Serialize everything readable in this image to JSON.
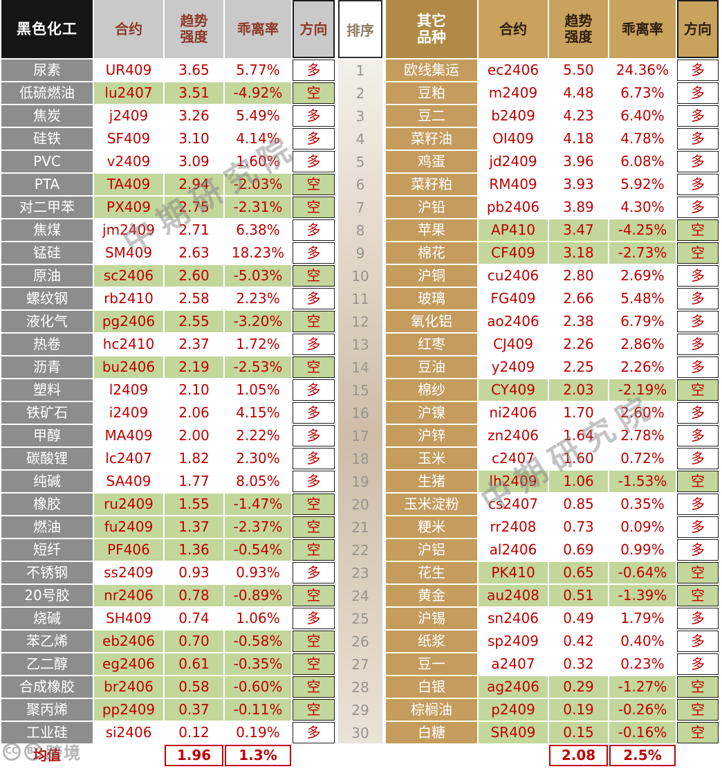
{
  "left_table": {
    "header": {
      "category": "黑色化工",
      "contract": "合约",
      "strength": "趋势\n强度",
      "deviation": "乖离率",
      "direction": "方向"
    },
    "rows": [
      {
        "name": "尿素",
        "contract": "UR409",
        "strength": "3.65",
        "deviation": "5.77%",
        "direction": "多"
      },
      {
        "name": "低硫燃油",
        "contract": "lu2407",
        "strength": "3.51",
        "deviation": "-4.92%",
        "direction": "空"
      },
      {
        "name": "焦炭",
        "contract": "j2409",
        "strength": "3.26",
        "deviation": "5.49%",
        "direction": "多"
      },
      {
        "name": "硅铁",
        "contract": "SF409",
        "strength": "3.10",
        "deviation": "4.14%",
        "direction": "多"
      },
      {
        "name": "PVC",
        "contract": "v2409",
        "strength": "3.09",
        "deviation": "1.60%",
        "direction": "多"
      },
      {
        "name": "PTA",
        "contract": "TA409",
        "strength": "2.94",
        "deviation": "-2.03%",
        "direction": "空"
      },
      {
        "name": "对二甲苯",
        "contract": "PX409",
        "strength": "2.75",
        "deviation": "-2.31%",
        "direction": "空"
      },
      {
        "name": "焦煤",
        "contract": "jm2409",
        "strength": "2.71",
        "deviation": "6.38%",
        "direction": "多"
      },
      {
        "name": "锰硅",
        "contract": "SM409",
        "strength": "2.63",
        "deviation": "18.23%",
        "direction": "多"
      },
      {
        "name": "原油",
        "contract": "sc2406",
        "strength": "2.60",
        "deviation": "-5.03%",
        "direction": "空"
      },
      {
        "name": "螺纹钢",
        "contract": "rb2410",
        "strength": "2.58",
        "deviation": "2.23%",
        "direction": "多"
      },
      {
        "name": "液化气",
        "contract": "pg2406",
        "strength": "2.55",
        "deviation": "-3.20%",
        "direction": "空"
      },
      {
        "name": "热卷",
        "contract": "hc2410",
        "strength": "2.37",
        "deviation": "1.72%",
        "direction": "多"
      },
      {
        "name": "沥青",
        "contract": "bu2406",
        "strength": "2.19",
        "deviation": "-2.53%",
        "direction": "空"
      },
      {
        "name": "塑料",
        "contract": "l2409",
        "strength": "2.10",
        "deviation": "1.05%",
        "direction": "多"
      },
      {
        "name": "铁矿石",
        "contract": "i2409",
        "strength": "2.06",
        "deviation": "4.15%",
        "direction": "多"
      },
      {
        "name": "甲醇",
        "contract": "MA409",
        "strength": "2.00",
        "deviation": "2.22%",
        "direction": "多"
      },
      {
        "name": "碳酸锂",
        "contract": "lc2407",
        "strength": "1.82",
        "deviation": "2.30%",
        "direction": "多"
      },
      {
        "name": "纯碱",
        "contract": "SA409",
        "strength": "1.77",
        "deviation": "8.05%",
        "direction": "多"
      },
      {
        "name": "橡胶",
        "contract": "ru2409",
        "strength": "1.55",
        "deviation": "-1.47%",
        "direction": "空"
      },
      {
        "name": "燃油",
        "contract": "fu2409",
        "strength": "1.37",
        "deviation": "-2.37%",
        "direction": "空"
      },
      {
        "name": "短纤",
        "contract": "PF406",
        "strength": "1.36",
        "deviation": "-0.54%",
        "direction": "空"
      },
      {
        "name": "不锈钢",
        "contract": "ss2409",
        "strength": "0.93",
        "deviation": "0.93%",
        "direction": "多"
      },
      {
        "name": "20号胶",
        "contract": "nr2406",
        "strength": "0.78",
        "deviation": "-0.89%",
        "direction": "空"
      },
      {
        "name": "烧碱",
        "contract": "SH409",
        "strength": "0.74",
        "deviation": "1.06%",
        "direction": "多"
      },
      {
        "name": "苯乙烯",
        "contract": "eb2406",
        "strength": "0.70",
        "deviation": "-0.58%",
        "direction": "空"
      },
      {
        "name": "乙二醇",
        "contract": "eg2406",
        "strength": "0.61",
        "deviation": "-0.35%",
        "direction": "空"
      },
      {
        "name": "合成橡胶",
        "contract": "br2406",
        "strength": "0.58",
        "deviation": "-0.60%",
        "direction": "空"
      },
      {
        "name": "聚丙烯",
        "contract": "pp2409",
        "strength": "0.37",
        "deviation": "-0.11%",
        "direction": "空"
      },
      {
        "name": "工业硅",
        "contract": "si2406",
        "strength": "0.12",
        "deviation": "0.19%",
        "direction": "多"
      }
    ],
    "footer": {
      "label": "均值",
      "strength": "1.96",
      "deviation": "1.3%"
    }
  },
  "rank_column": {
    "header": "排序",
    "ranks": [
      1,
      2,
      3,
      4,
      5,
      6,
      7,
      8,
      9,
      10,
      11,
      12,
      13,
      14,
      15,
      16,
      17,
      18,
      19,
      20,
      21,
      22,
      23,
      24,
      25,
      26,
      27,
      28,
      29,
      30
    ]
  },
  "right_table": {
    "header": {
      "category": "其它\n品种",
      "contract": "合约",
      "strength": "趋势\n强度",
      "deviation": "乖离率",
      "direction": "方向"
    },
    "rows": [
      {
        "name": "欧线集运",
        "contract": "ec2406",
        "strength": "5.50",
        "deviation": "24.36%",
        "direction": "多"
      },
      {
        "name": "豆粕",
        "contract": "m2409",
        "strength": "4.48",
        "deviation": "6.73%",
        "direction": "多"
      },
      {
        "name": "豆二",
        "contract": "b2409",
        "strength": "4.23",
        "deviation": "6.40%",
        "direction": "多"
      },
      {
        "name": "菜籽油",
        "contract": "OI409",
        "strength": "4.18",
        "deviation": "4.78%",
        "direction": "多"
      },
      {
        "name": "鸡蛋",
        "contract": "jd2409",
        "strength": "3.96",
        "deviation": "6.08%",
        "direction": "多"
      },
      {
        "name": "菜籽粕",
        "contract": "RM409",
        "strength": "3.93",
        "deviation": "5.92%",
        "direction": "多"
      },
      {
        "name": "沪铅",
        "contract": "pb2406",
        "strength": "3.89",
        "deviation": "4.30%",
        "direction": "多"
      },
      {
        "name": "苹果",
        "contract": "AP410",
        "strength": "3.47",
        "deviation": "-4.25%",
        "direction": "空"
      },
      {
        "name": "棉花",
        "contract": "CF409",
        "strength": "3.18",
        "deviation": "-2.73%",
        "direction": "空"
      },
      {
        "name": "沪铜",
        "contract": "cu2406",
        "strength": "2.80",
        "deviation": "2.69%",
        "direction": "多"
      },
      {
        "name": "玻璃",
        "contract": "FG409",
        "strength": "2.66",
        "deviation": "5.48%",
        "direction": "多"
      },
      {
        "name": "氧化铝",
        "contract": "ao2406",
        "strength": "2.38",
        "deviation": "6.79%",
        "direction": "多"
      },
      {
        "name": "红枣",
        "contract": "CJ409",
        "strength": "2.26",
        "deviation": "2.86%",
        "direction": "多"
      },
      {
        "name": "豆油",
        "contract": "y2409",
        "strength": "2.25",
        "deviation": "2.26%",
        "direction": "多"
      },
      {
        "name": "棉纱",
        "contract": "CY409",
        "strength": "2.03",
        "deviation": "-2.19%",
        "direction": "空"
      },
      {
        "name": "沪镍",
        "contract": "ni2406",
        "strength": "1.70",
        "deviation": "2.60%",
        "direction": "多"
      },
      {
        "name": "沪锌",
        "contract": "zn2406",
        "strength": "1.64",
        "deviation": "2.78%",
        "direction": "多"
      },
      {
        "name": "玉米",
        "contract": "c2407",
        "strength": "1.60",
        "deviation": "0.72%",
        "direction": "多"
      },
      {
        "name": "生猪",
        "contract": "lh2409",
        "strength": "1.06",
        "deviation": "-1.53%",
        "direction": "空"
      },
      {
        "name": "玉米淀粉",
        "contract": "cs2407",
        "strength": "0.85",
        "deviation": "0.35%",
        "direction": "多"
      },
      {
        "name": "粳米",
        "contract": "rr2408",
        "strength": "0.73",
        "deviation": "0.09%",
        "direction": "多"
      },
      {
        "name": "沪铝",
        "contract": "al2406",
        "strength": "0.69",
        "deviation": "0.99%",
        "direction": "多"
      },
      {
        "name": "花生",
        "contract": "PK410",
        "strength": "0.65",
        "deviation": "-0.64%",
        "direction": "空"
      },
      {
        "name": "黄金",
        "contract": "au2408",
        "strength": "0.51",
        "deviation": "-1.39%",
        "direction": "空"
      },
      {
        "name": "沪锡",
        "contract": "sn2406",
        "strength": "0.49",
        "deviation": "1.79%",
        "direction": "多"
      },
      {
        "name": "纸浆",
        "contract": "sp2409",
        "strength": "0.42",
        "deviation": "0.40%",
        "direction": "多"
      },
      {
        "name": "豆一",
        "contract": "a2407",
        "strength": "0.32",
        "deviation": "0.23%",
        "direction": "多"
      },
      {
        "name": "白银",
        "contract": "ag2406",
        "strength": "0.29",
        "deviation": "-1.27%",
        "direction": "空"
      },
      {
        "name": "棕榈油",
        "contract": "p2409",
        "strength": "0.19",
        "deviation": "-0.26%",
        "direction": "空"
      },
      {
        "name": "白糖",
        "contract": "SR409",
        "strength": "0.15",
        "deviation": "-0.16%",
        "direction": "空"
      }
    ],
    "footer": {
      "label": "",
      "strength": "2.08",
      "deviation": "2.5%"
    }
  },
  "legend": {
    "long_label": "多",
    "short_label": "空"
  },
  "watermarks": {
    "diagonal": "中期研究院",
    "badge1": "CC",
    "badge2": "BY",
    "bottom": "跨境"
  },
  "colors": {
    "data_text": "#c00000",
    "short_row_bg": "#c3d69b",
    "long_row_bg": "#ffffff",
    "left_name_bg": "#8d8d8d",
    "left_title_bg": "#161616",
    "left_header_bg": "#c9c9c9",
    "left_header_text": "#8d3a28",
    "right_name_bg": "#c49c5e",
    "right_title_bg": "#b08a46",
    "right_header_bg": "#c9a25d"
  }
}
